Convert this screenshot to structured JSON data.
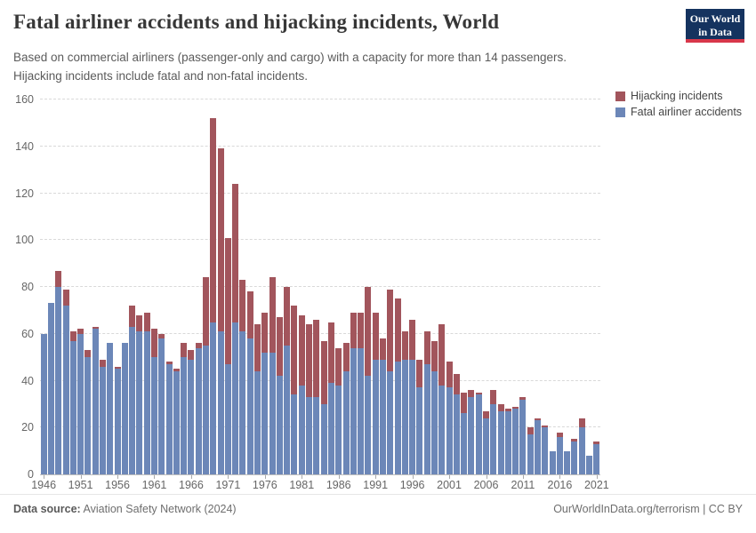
{
  "header": {
    "title": "Fatal airliner accidents and hijacking incidents, World",
    "subtitle": "Based on commercial airliners (passenger-only and cargo) with a capacity for more than 14 passengers. Hijacking incidents include fatal and non-fatal incidents.",
    "logo_line1": "Our World",
    "logo_line2": "in Data",
    "logo_bg": "#15335f",
    "logo_accent": "#d8374a"
  },
  "legend": {
    "items": [
      {
        "label": "Hijacking incidents",
        "color": "#a2555c"
      },
      {
        "label": "Fatal airliner accidents",
        "color": "#6c87b8"
      }
    ]
  },
  "footer": {
    "source_label": "Data source:",
    "source_text": " Aviation Safety Network (2024)",
    "link_text": "OurWorldInData.org/terrorism | CC BY"
  },
  "chart_data": {
    "type": "bar",
    "stacked": true,
    "title": "Fatal airliner accidents and hijacking incidents, World",
    "x": [
      1946,
      1947,
      1948,
      1949,
      1950,
      1951,
      1952,
      1953,
      1954,
      1955,
      1956,
      1957,
      1958,
      1959,
      1960,
      1961,
      1962,
      1963,
      1964,
      1965,
      1966,
      1967,
      1968,
      1969,
      1970,
      1971,
      1972,
      1973,
      1974,
      1975,
      1976,
      1977,
      1978,
      1979,
      1980,
      1981,
      1982,
      1983,
      1984,
      1985,
      1986,
      1987,
      1988,
      1989,
      1990,
      1991,
      1992,
      1993,
      1994,
      1995,
      1996,
      1997,
      1998,
      1999,
      2000,
      2001,
      2002,
      2003,
      2004,
      2005,
      2006,
      2007,
      2008,
      2009,
      2010,
      2011,
      2012,
      2013,
      2014,
      2015,
      2016,
      2017,
      2018,
      2019,
      2020,
      2021
    ],
    "series": [
      {
        "name": "Fatal airliner accidents",
        "color": "#6c87b8",
        "values": [
          60,
          73,
          80,
          72,
          57,
          60,
          50,
          62,
          46,
          56,
          45,
          56,
          63,
          61,
          61,
          50,
          58,
          47,
          44,
          50,
          49,
          54,
          55,
          65,
          61,
          47,
          65,
          61,
          58,
          44,
          52,
          52,
          42,
          55,
          34,
          38,
          33,
          33,
          30,
          39,
          38,
          44,
          54,
          54,
          42,
          49,
          49,
          44,
          48,
          49,
          49,
          37,
          47,
          44,
          38,
          37,
          34,
          26,
          33,
          34,
          24,
          30,
          27,
          27,
          28,
          32,
          17,
          23,
          20,
          10,
          16,
          10,
          14,
          20,
          8,
          13
        ]
      },
      {
        "name": "Hijacking incidents",
        "color": "#a2555c",
        "values": [
          0,
          0,
          7,
          7,
          4,
          2,
          3,
          1,
          3,
          0,
          1,
          0,
          9,
          7,
          8,
          12,
          2,
          1,
          1,
          6,
          4,
          2,
          29,
          87,
          78,
          54,
          59,
          22,
          20,
          20,
          17,
          32,
          25,
          25,
          38,
          30,
          31,
          33,
          27,
          26,
          16,
          12,
          15,
          15,
          38,
          20,
          9,
          35,
          27,
          12,
          17,
          12,
          14,
          13,
          26,
          11,
          9,
          9,
          3,
          1,
          3,
          6,
          3,
          1,
          1,
          1,
          3,
          1,
          1,
          0,
          2,
          0,
          1,
          4,
          0,
          1
        ]
      }
    ],
    "ylim": [
      0,
      160
    ],
    "ytick_step": 20,
    "yticks": [
      0,
      20,
      40,
      60,
      80,
      100,
      120,
      140,
      160
    ],
    "xtick_years": [
      1946,
      1951,
      1956,
      1961,
      1966,
      1971,
      1976,
      1981,
      1986,
      1991,
      1996,
      2001,
      2006,
      2011,
      2016,
      2021
    ],
    "grid": "dashed-horizontal",
    "legend_position": "top-right"
  }
}
